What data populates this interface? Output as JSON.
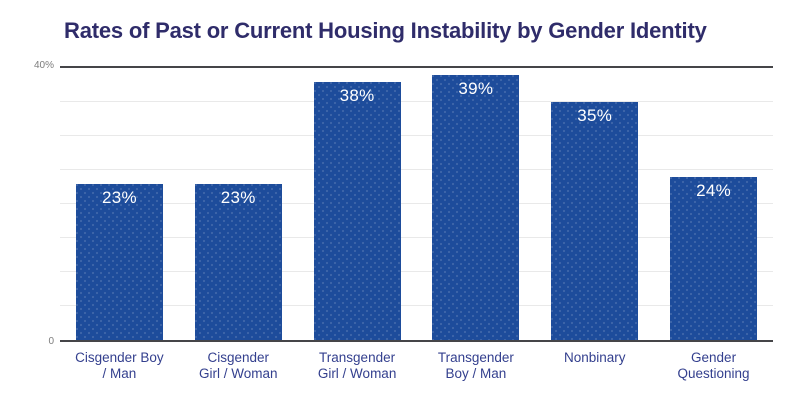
{
  "page": {
    "background": "#ffffff"
  },
  "chart_data": {
    "type": "bar",
    "title": "Rates of Past or Current Housing Instability by Gender Identity",
    "categories": [
      "Cisgender Boy / Man",
      "Cisgender Girl / Woman",
      "Transgender Girl / Woman",
      "Transgender Boy / Man",
      "Nonbinary",
      "Gender Questioning"
    ],
    "category_label_lines": [
      [
        "Cisgender Boy",
        "/ Man"
      ],
      [
        "Cisgender",
        "Girl / Woman"
      ],
      [
        "Transgender",
        "Girl / Woman"
      ],
      [
        "Transgender",
        "Boy / Man"
      ],
      [
        "Nonbinary"
      ],
      [
        "Gender",
        "Questioning"
      ]
    ],
    "values": [
      23,
      23,
      38,
      39,
      35,
      24
    ],
    "value_labels": [
      "23%",
      "23%",
      "38%",
      "39%",
      "35%",
      "24%"
    ],
    "xlabel": "",
    "ylabel": "",
    "ylim": [
      0,
      40
    ],
    "y_axis": {
      "top_tick_label": "40%",
      "bottom_tick_label": "0",
      "gridline_step_percent": 5
    },
    "grid": true,
    "legend": false,
    "colors": {
      "bar": "#1d4c9b",
      "bar_dot": "rgba(255,255,255,0.14)",
      "title": "#2f2c6a",
      "category_label": "#333f8e",
      "tick_label": "#7d7d7d",
      "gridline": "#e9e9e9",
      "axis_line": "#454548",
      "value_label": "#ffffff",
      "page_background": "#ffffff"
    }
  }
}
